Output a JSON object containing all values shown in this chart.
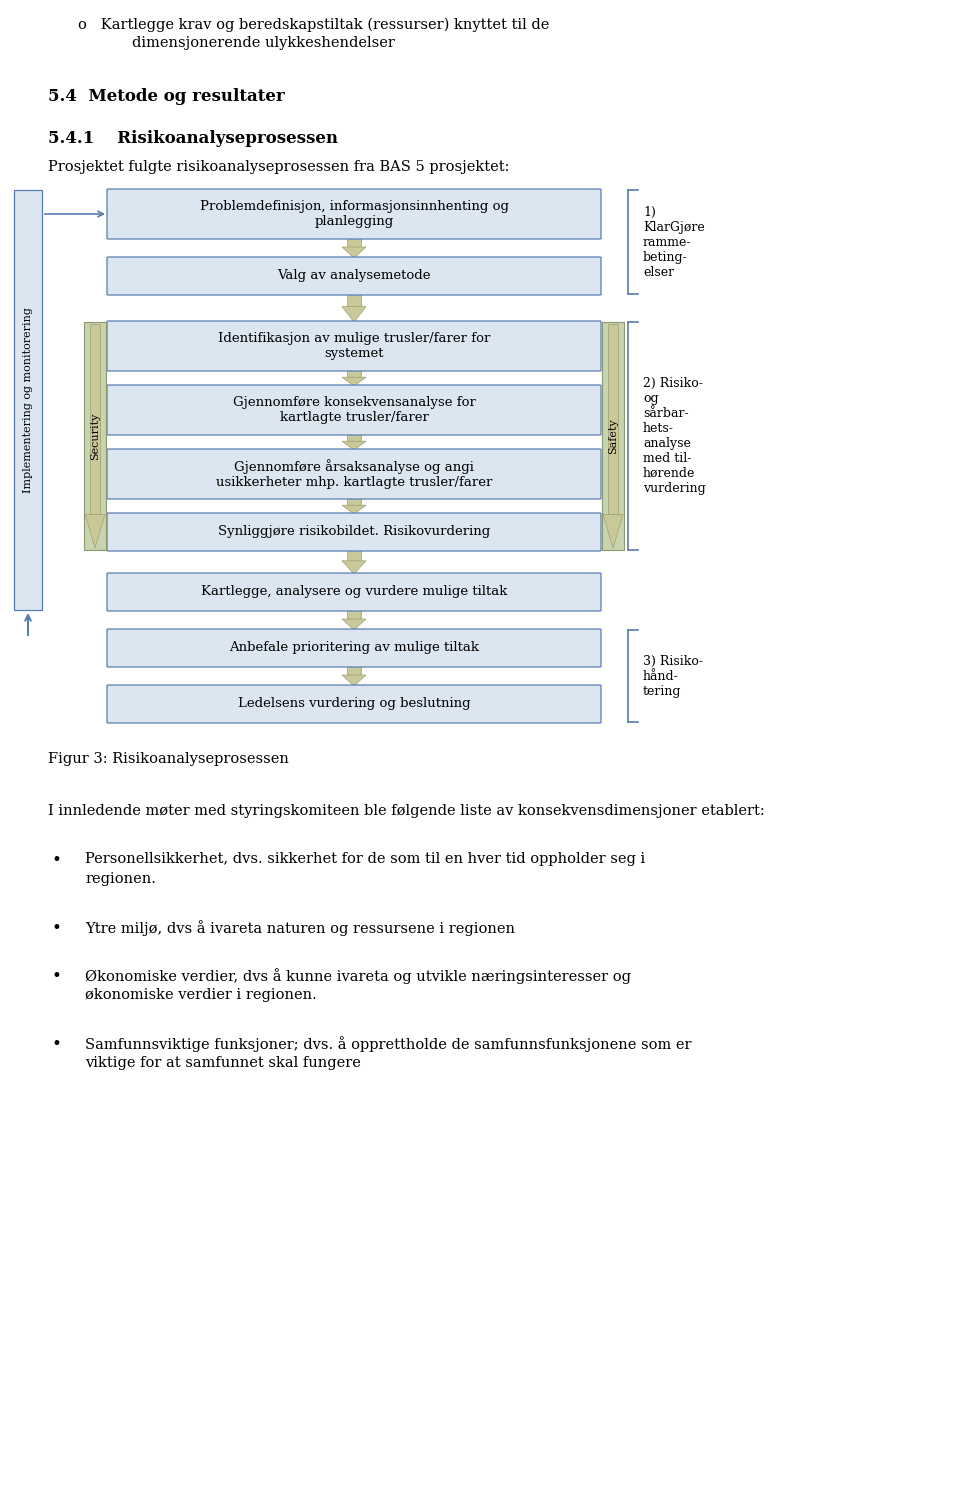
{
  "background_color": "#ffffff",
  "page_width": 9.6,
  "page_height": 14.95,
  "box_fill_color": "#dce6f1",
  "box_edge_color": "#5a7db0",
  "sec_saf_fill": "#c8d4b0",
  "sec_saf_edge": "#8a9870",
  "arrow_fill": "#c8c898",
  "arrow_edge": "#a0a070",
  "impl_fill": "#dce6f1",
  "impl_edge": "#5a7db0",
  "bracket_color": "#5a7db0",
  "section_54": "5.4  Metode og resultater",
  "section_541": "5.4.1    Risikoanalyseprosessen",
  "intro": "Prosjektet fulgte risikoanalyseprosessen fra BAS 5 prosjektet:",
  "figure_caption": "Figur 3: Risikoanalyseprosessen",
  "para": "I innledende møter med styringskomiteen ble følgende liste av konsekvensdimensjoner etablert:",
  "bullets": [
    "Personellsikkerhet, dvs. sikkerhet for de som til en hver tid oppholder seg i regionen.",
    "Ytre miljø, dvs å ivareta naturen og ressursene i regionen",
    "Økonomiske verdier, dvs å kunne ivareta og utvikle næringsinteresser og økonomiske verdier i regionen.",
    "Samfunnsviktige funksjoner; dvs. å opprettholde de samfunnsfunksjonene som er viktige for at samfunnet skal fungere"
  ],
  "top_bullet_line1": "o   Kartlegge krav og beredskapstiltak (ressurser) knyttet til de",
  "top_bullet_line2": "dimensjonerende ulykkeshendelser",
  "label1": "1)\nKlarGjøre\nramme-\nbeting-\nelser",
  "label2": "2) Risiko-\nog\nsårbar-\nhets-\nanalyse\nmed til-\nhørende\nvurdering",
  "label3": "3) Risiko-\nhånd-\ntering"
}
